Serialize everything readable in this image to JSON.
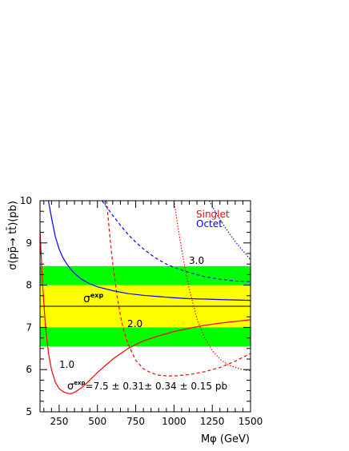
{
  "chart_data": {
    "type": "line",
    "xlabel": "Mφ (GeV)",
    "ylabel": "σ(pp̄→ tt̄)(pb)",
    "xlim": [
      125,
      1500
    ],
    "ylim": [
      5,
      10
    ],
    "xticks": [
      250,
      500,
      750,
      1000,
      1250,
      1500
    ],
    "yticks": [
      5,
      6,
      7,
      8,
      9,
      10
    ],
    "grid": false,
    "legend": {
      "placement": "top-right",
      "entries": [
        {
          "label": "Singlet",
          "color": "#ff0000"
        },
        {
          "label": "Octet",
          "color": "#0000ff"
        }
      ]
    },
    "bands": [
      {
        "range": [
          6.55,
          8.45
        ],
        "color": "#00ff00"
      },
      {
        "range": [
          7.0,
          8.0
        ],
        "color": "#ffff00"
      }
    ],
    "reference_line": {
      "y": 7.5,
      "label": "σ",
      "label_sup": "exp"
    },
    "measurement_text": {
      "prefix": "σ",
      "sup": "exp",
      "value": "=7.5 ± 0.31± 0.34 ± 0.15 pb"
    },
    "curve_labels": [
      "1.0",
      "2.0",
      "3.0"
    ],
    "series": [
      {
        "name": "Singlet",
        "style": "solid",
        "color": "#ff0000",
        "x": [
          125,
          140,
          160,
          180,
          200,
          225,
          250,
          275,
          300,
          325,
          350,
          400,
          450,
          500,
          600,
          700,
          800,
          900,
          1000,
          1100,
          1200,
          1300,
          1400,
          1500
        ],
        "y": [
          9.3,
          8.1,
          7.05,
          6.4,
          6.0,
          5.7,
          5.55,
          5.48,
          5.44,
          5.43,
          5.46,
          5.58,
          5.75,
          5.93,
          6.25,
          6.5,
          6.68,
          6.8,
          6.9,
          6.98,
          7.05,
          7.1,
          7.14,
          7.18
        ]
      },
      {
        "name": "Singlet",
        "style": "dashed",
        "color": "#ff0000",
        "x": [
          560,
          580,
          600,
          630,
          660,
          700,
          750,
          800,
          850,
          900,
          950,
          1000,
          1100,
          1200,
          1300,
          1400,
          1500
        ],
        "y": [
          10,
          9.2,
          8.5,
          7.7,
          7.1,
          6.6,
          6.22,
          6.02,
          5.92,
          5.87,
          5.85,
          5.85,
          5.88,
          5.95,
          6.05,
          6.2,
          6.38
        ]
      },
      {
        "name": "Singlet",
        "style": "dotted",
        "color": "#ff0000",
        "x": [
          1000,
          1025,
          1050,
          1075,
          1100,
          1150,
          1200,
          1250,
          1300,
          1350,
          1400,
          1450,
          1500
        ],
        "y": [
          10,
          9.4,
          8.85,
          8.35,
          7.9,
          7.2,
          6.75,
          6.45,
          6.25,
          6.12,
          6.05,
          6.0,
          5.97
        ]
      },
      {
        "name": "Octet",
        "style": "solid",
        "color": "#0000ff",
        "x": [
          180,
          200,
          225,
          250,
          275,
          300,
          325,
          350,
          400,
          450,
          500,
          600,
          700,
          800,
          900,
          1000,
          1100,
          1200,
          1300,
          1400,
          1500
        ],
        "y": [
          10,
          9.6,
          9.15,
          8.85,
          8.65,
          8.5,
          8.38,
          8.28,
          8.13,
          8.03,
          7.96,
          7.87,
          7.8,
          7.76,
          7.73,
          7.7,
          7.68,
          7.67,
          7.66,
          7.65,
          7.64
        ]
      },
      {
        "name": "Octet",
        "style": "dashed",
        "color": "#0000ff",
        "x": [
          530,
          560,
          600,
          650,
          700,
          750,
          800,
          850,
          900,
          950,
          1000,
          1100,
          1200,
          1300,
          1400,
          1500
        ],
        "y": [
          10,
          9.85,
          9.65,
          9.42,
          9.2,
          9.02,
          8.86,
          8.72,
          8.6,
          8.5,
          8.42,
          8.3,
          8.2,
          8.14,
          8.1,
          8.08
        ]
      },
      {
        "name": "Octet",
        "style": "dotted",
        "color": "#0000ff",
        "x": [
          1230,
          1280,
          1330,
          1380,
          1430,
          1480,
          1500
        ],
        "y": [
          10,
          9.68,
          9.39,
          9.13,
          8.9,
          8.69,
          8.6
        ]
      }
    ]
  }
}
